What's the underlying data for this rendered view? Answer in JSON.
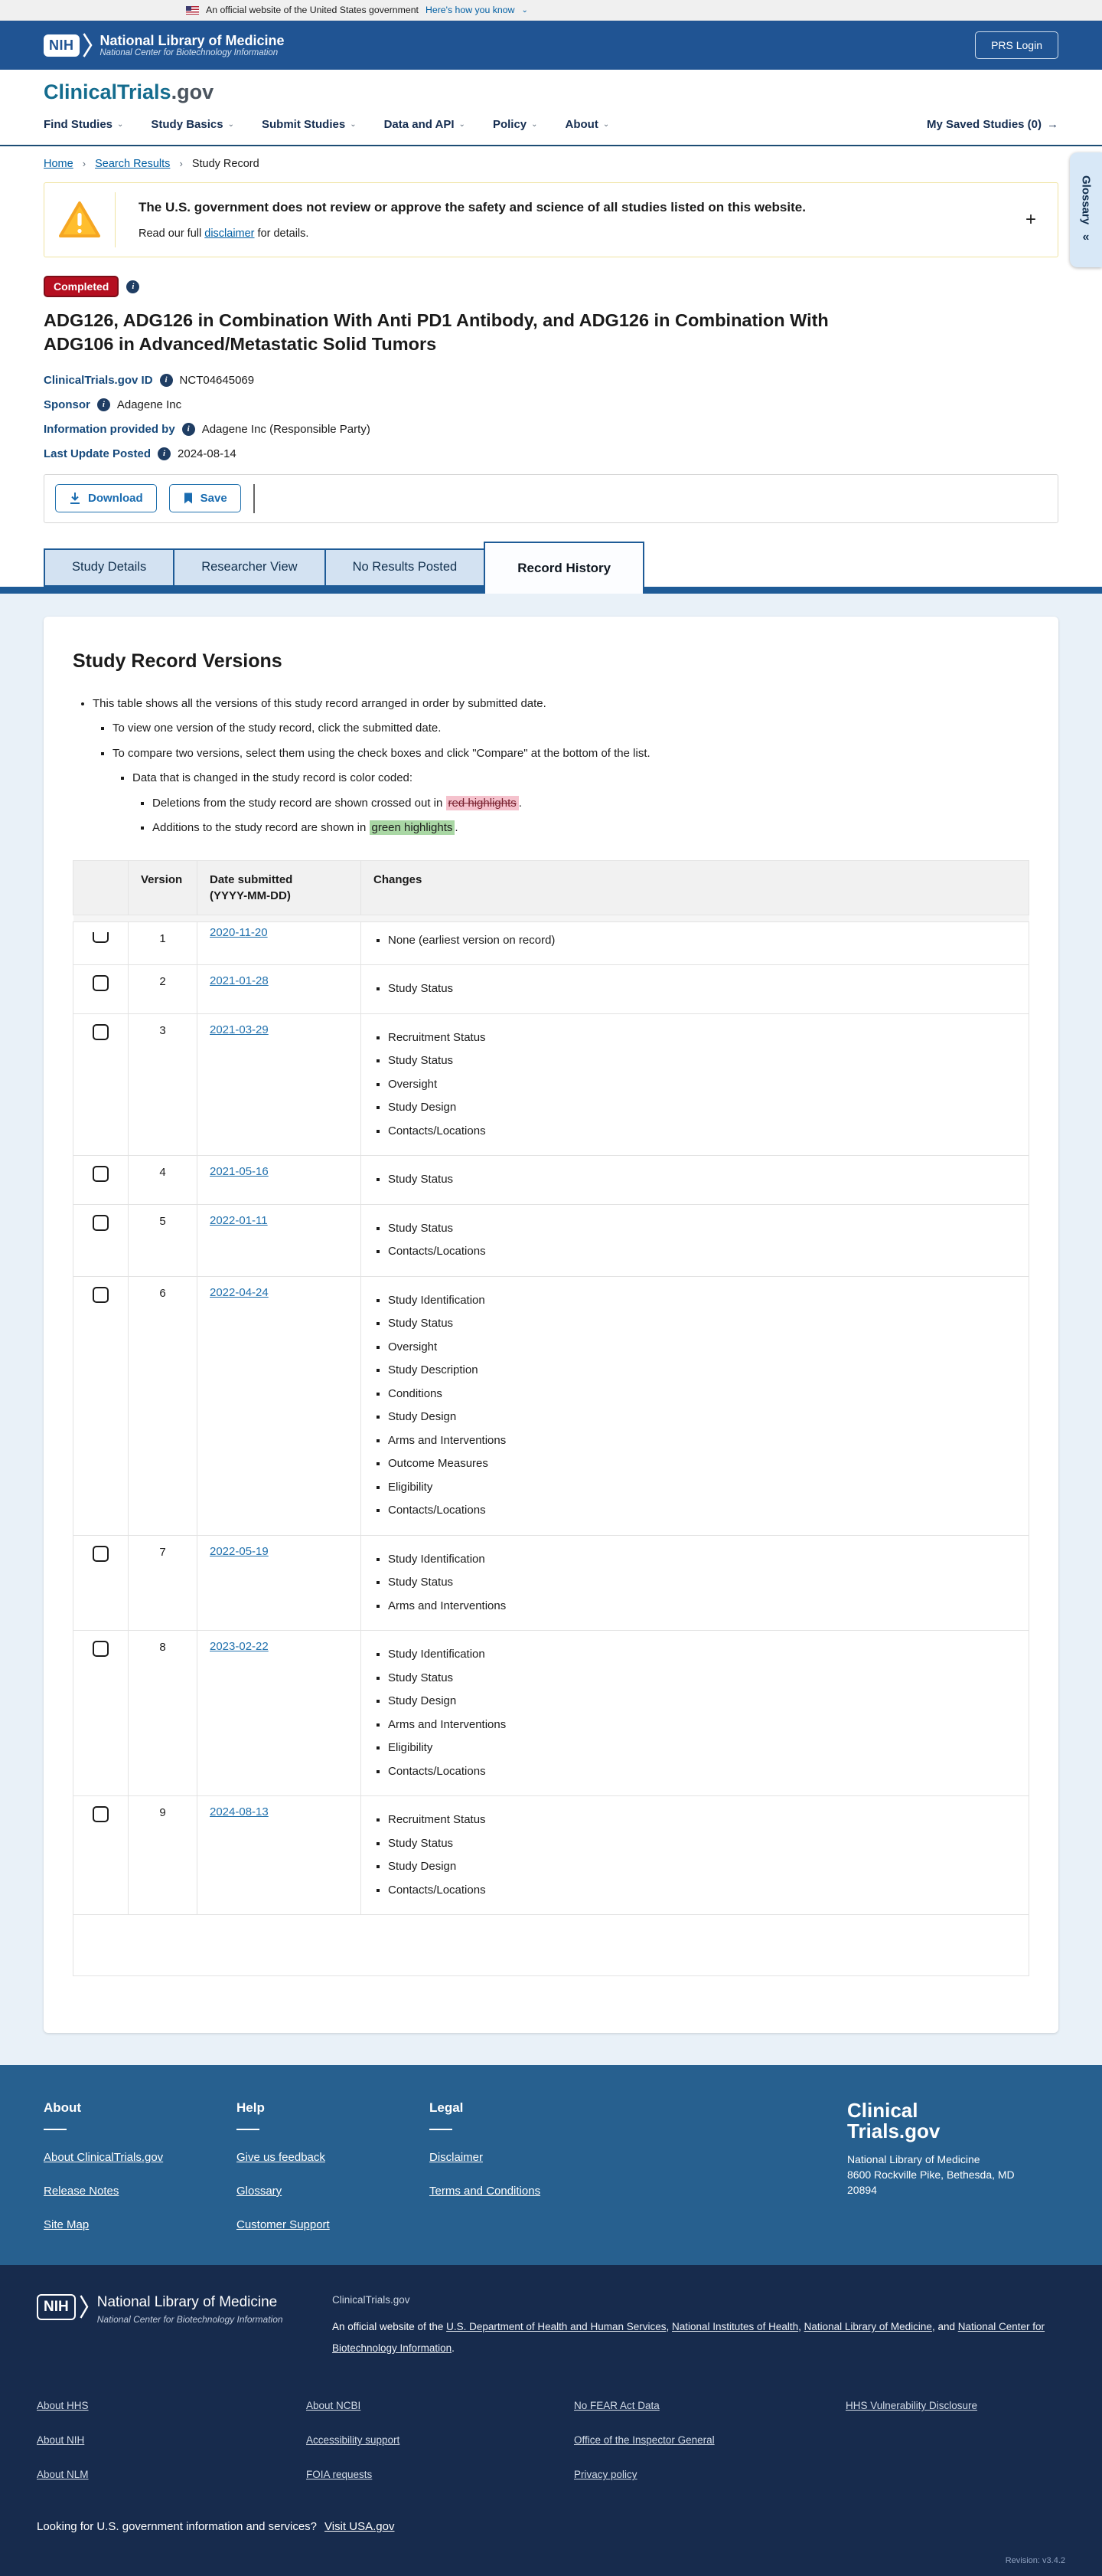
{
  "glyphs": {
    "chevron_down": "⌄",
    "arrow_right": "→",
    "collapse": "«",
    "plus": "+",
    "info": "i",
    "breadcrumb_sep": "›"
  },
  "gov_banner": {
    "text": "An official website of the United States government",
    "link": "Here's how you know"
  },
  "site_header": {
    "logo_acronym": "NIH",
    "title": "National Library of Medicine",
    "subtitle": "National Center for Biotechnology Information",
    "login_button": "PRS Login"
  },
  "nav": {
    "brand_primary": "ClinicalTrials",
    "brand_suffix": ".gov",
    "items": [
      "Find Studies",
      "Study Basics",
      "Submit Studies",
      "Data and API",
      "Policy",
      "About"
    ],
    "saved_studies": "My Saved Studies (0)"
  },
  "breadcrumb": {
    "items": [
      "Home",
      "Search Results",
      "Study Record"
    ]
  },
  "glossary_tab": {
    "label": "Glossary"
  },
  "warning_banner": {
    "headline": "The U.S. government does not review or approve the safety and science of all studies listed on this website.",
    "body_prefix": "Read our full ",
    "body_link": "disclaimer",
    "body_suffix": " for details."
  },
  "study": {
    "status_badge": "Completed",
    "title": "ADG126, ADG126 in Combination With Anti PD1 Antibody, and ADG126 in Combination With ADG106 in Advanced/Metastatic Solid Tumors",
    "meta": [
      {
        "label": "ClinicalTrials.gov ID",
        "value": "NCT04645069"
      },
      {
        "label": "Sponsor",
        "value": "Adagene Inc"
      },
      {
        "label": "Information provided by",
        "value": "Adagene Inc (Responsible Party)"
      },
      {
        "label": "Last Update Posted",
        "value": "2024-08-14"
      }
    ]
  },
  "actions": {
    "download": "Download",
    "save": "Save"
  },
  "tabs": [
    {
      "label": "Study Details",
      "active": false
    },
    {
      "label": "Researcher View",
      "active": false
    },
    {
      "label": "No Results Posted",
      "active": false
    },
    {
      "label": "Record History",
      "active": true
    }
  ],
  "record_versions": {
    "heading": "Study Record Versions",
    "intro": "This table shows all the versions of this study record arranged in order by submitted date.",
    "bullet_view": "To view one version of the study record, click the submitted date.",
    "bullet_compare": "To compare two versions, select them using the check boxes and click \"Compare\" at the bottom of the list.",
    "bullet_color": "Data that is changed in the study record is color coded:",
    "bullet_del_prefix": "Deletions from the study record are shown crossed out in ",
    "bullet_del_highlight": "red highlights",
    "bullet_del_suffix": ".",
    "bullet_add_prefix": "Additions to the study record are shown in ",
    "bullet_add_highlight": "green highlights",
    "bullet_add_suffix": ".",
    "table": {
      "headers": {
        "version": "Version",
        "date": "Date submitted\n(YYYY-MM-DD)",
        "changes": "Changes"
      },
      "rows": [
        {
          "version": "1",
          "date": "2020-11-20",
          "changes": [
            "None (earliest version on record)"
          ]
        },
        {
          "version": "2",
          "date": "2021-01-28",
          "changes": [
            "Study Status"
          ]
        },
        {
          "version": "3",
          "date": "2021-03-29",
          "changes": [
            "Recruitment Status",
            "Study Status",
            "Oversight",
            "Study Design",
            "Contacts/Locations"
          ]
        },
        {
          "version": "4",
          "date": "2021-05-16",
          "changes": [
            "Study Status"
          ]
        },
        {
          "version": "5",
          "date": "2022-01-11",
          "changes": [
            "Study Status",
            "Contacts/Locations"
          ]
        },
        {
          "version": "6",
          "date": "2022-04-24",
          "changes": [
            "Study Identification",
            "Study Status",
            "Oversight",
            "Study Description",
            "Conditions",
            "Study Design",
            "Arms and Interventions",
            "Outcome Measures",
            "Eligibility",
            "Contacts/Locations"
          ]
        },
        {
          "version": "7",
          "date": "2022-05-19",
          "changes": [
            "Study Identification",
            "Study Status",
            "Arms and Interventions"
          ]
        },
        {
          "version": "8",
          "date": "2023-02-22",
          "changes": [
            "Study Identification",
            "Study Status",
            "Study Design",
            "Arms and Interventions",
            "Eligibility",
            "Contacts/Locations"
          ]
        },
        {
          "version": "9",
          "date": "2024-08-13",
          "changes": [
            "Recruitment Status",
            "Study Status",
            "Study Design",
            "Contacts/Locations"
          ]
        }
      ]
    }
  },
  "footer_mid": {
    "columns": [
      {
        "heading": "About",
        "links": [
          "About ClinicalTrials.gov",
          "Release Notes",
          "Site Map"
        ]
      },
      {
        "heading": "Help",
        "links": [
          "Give us feedback",
          "Glossary",
          "Customer Support"
        ]
      },
      {
        "heading": "Legal",
        "links": [
          "Disclaimer",
          "Terms and Conditions"
        ]
      }
    ],
    "wordmark_line1": "Clinical",
    "wordmark_line2": "Trials.gov",
    "address_line1": "National Library of Medicine",
    "address_line2": "8600 Rockville Pike, Bethesda, MD",
    "address_line3": "20894"
  },
  "footer_dark": {
    "logo_acronym": "NIH",
    "nlm_title": "National Library of Medicine",
    "nlm_subtitle": "National Center for Biotechnology Information",
    "site_label": "ClinicalTrials.gov",
    "official_parts": [
      {
        "t": "An official website of the "
      },
      {
        "l": "U.S. Department of Health and Human Services"
      },
      {
        "t": ", "
      },
      {
        "l": "National Institutes of Health"
      },
      {
        "t": ", "
      },
      {
        "l": "National Library of Medicine"
      },
      {
        "t": ", and "
      },
      {
        "l": "National Center for Biotechnology Information"
      },
      {
        "t": "."
      }
    ],
    "link_columns": [
      [
        "About HHS",
        "About NIH",
        "About NLM"
      ],
      [
        "About NCBI",
        "Accessibility support",
        "FOIA requests"
      ],
      [
        "No FEAR Act Data",
        "Office of the Inspector General",
        "Privacy policy"
      ],
      [
        "HHS Vulnerability Disclosure"
      ]
    ],
    "usa_text": "Looking for U.S. government information and services?",
    "usa_link": "Visit USA.gov",
    "revision": "Revision: v3.4.2"
  }
}
